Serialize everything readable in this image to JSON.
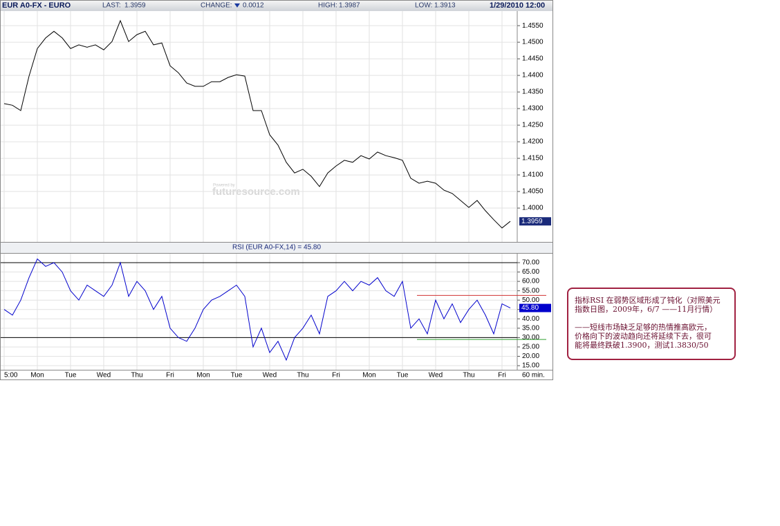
{
  "header": {
    "symbol": "EUR A0-FX - EURO",
    "last_label": "LAST:",
    "last": "1.3959",
    "change_label": "CHANGE:",
    "change": "0.0012",
    "high_label": "HIGH:",
    "high": "1.3987",
    "low_label": "LOW:",
    "low": "1.3913",
    "datetime": "1/29/2010 12:00"
  },
  "watermark": {
    "top": "Powered by",
    "main": "futuresource.com"
  },
  "chart_data": [
    {
      "type": "line",
      "color": "#000000",
      "values": [
        1.4315,
        1.431,
        1.4294,
        1.4398,
        1.4481,
        1.4513,
        1.4533,
        1.4513,
        1.4481,
        1.4492,
        1.4485,
        1.4492,
        1.4477,
        1.4502,
        1.4565,
        1.4502,
        1.4523,
        1.4533,
        1.4492,
        1.4498,
        1.4429,
        1.4408,
        1.4377,
        1.4367,
        1.4367,
        1.4381,
        1.4381,
        1.4394,
        1.4402,
        1.4398,
        1.4294,
        1.4294,
        1.4221,
        1.419,
        1.4138,
        1.4106,
        1.4117,
        1.4096,
        1.4065,
        1.4106,
        1.4127,
        1.4144,
        1.4138,
        1.4158,
        1.4148,
        1.4169,
        1.4158,
        1.4152,
        1.4144,
        1.409,
        1.4075,
        1.4081,
        1.4075,
        1.4054,
        1.4044,
        1.4023,
        1.4002,
        1.4023,
        1.3992,
        1.3965,
        1.394,
        1.396
      ],
      "ylim": [
        1.3898,
        1.4594
      ],
      "yticks": [
        {
          "value": 1.4,
          "label": "1.4000"
        },
        {
          "value": 1.405,
          "label": "1.4050"
        },
        {
          "value": 1.41,
          "label": "1.4100"
        },
        {
          "value": 1.415,
          "label": "1.4150"
        },
        {
          "value": 1.42,
          "label": "1.4200"
        },
        {
          "value": 1.425,
          "label": "1.4250"
        },
        {
          "value": 1.43,
          "label": "1.4300"
        },
        {
          "value": 1.435,
          "label": "1.4350"
        },
        {
          "value": 1.44,
          "label": "1.4400"
        },
        {
          "value": 1.445,
          "label": "1.4450"
        },
        {
          "value": 1.45,
          "label": "1.4500"
        },
        {
          "value": 1.455,
          "label": "1.4550"
        }
      ],
      "grid": true
    },
    {
      "type": "line",
      "title": "RSI (EUR A0-FX,14) = 45.80",
      "color": "#0000cc",
      "categories": [
        "5:00",
        null,
        null,
        null,
        "Mon",
        null,
        null,
        null,
        "Tue",
        null,
        null,
        null,
        "Wed",
        null,
        null,
        null,
        "Thu",
        null,
        null,
        null,
        "Fri",
        null,
        null,
        null,
        "Mon",
        null,
        null,
        null,
        "Tue",
        null,
        null,
        null,
        "Wed",
        null,
        null,
        null,
        "Thu",
        null,
        null,
        null,
        "Fri",
        null,
        null,
        null,
        "Mon",
        null,
        null,
        null,
        "Tue",
        null,
        null,
        null,
        "Wed",
        null,
        null,
        null,
        "Thu",
        null,
        null,
        null,
        "Fri",
        null
      ],
      "values": [
        45,
        42,
        50,
        62,
        72,
        68,
        70,
        65,
        55,
        50,
        58,
        55,
        52,
        58,
        70,
        52,
        60,
        55,
        45,
        52,
        35,
        30,
        28,
        35,
        45,
        50,
        52,
        55,
        58,
        52,
        25,
        35,
        22,
        28,
        18,
        30,
        35,
        42,
        32,
        52,
        55,
        60,
        55,
        60,
        58,
        62,
        55,
        52,
        60,
        35,
        40,
        32,
        50,
        40,
        48,
        38,
        45,
        50,
        42,
        32,
        48,
        45.8
      ],
      "value_labels": [
        null,
        null,
        null,
        null,
        null,
        null,
        null,
        null,
        null,
        null,
        null,
        null,
        null,
        null,
        null,
        null,
        null,
        null,
        null,
        null,
        null,
        null,
        null,
        null,
        null,
        null,
        null,
        null,
        null,
        null,
        null,
        null,
        null,
        null,
        null,
        null,
        null,
        null,
        null,
        null,
        null,
        null,
        null,
        null,
        null,
        null,
        null,
        null,
        null,
        null,
        null,
        null,
        null,
        null,
        null,
        null,
        null,
        null,
        null,
        null,
        null,
        "45.80"
      ],
      "x_unit": "60 min.",
      "ylim": [
        12.8,
        74.8
      ],
      "yticks": [
        {
          "value": 15,
          "label": "15.00"
        },
        {
          "value": 20,
          "label": "20.00"
        },
        {
          "value": 25,
          "label": "25.00"
        },
        {
          "value": 30,
          "label": "30.00"
        },
        {
          "value": 35,
          "label": "35.00"
        },
        {
          "value": 40,
          "label": "40.00"
        },
        {
          "value": 45,
          "label": "45.00"
        },
        {
          "value": 50,
          "label": "50.00"
        },
        {
          "value": 55,
          "label": "55.00"
        },
        {
          "value": 60,
          "label": "60.00"
        },
        {
          "value": 65,
          "label": "65.00"
        },
        {
          "value": 70,
          "label": "70.00"
        }
      ],
      "reference_lines": [
        70,
        30
      ],
      "trend_lines": [
        {
          "value": 52.5,
          "color": "#d03030"
        },
        {
          "value": 29,
          "color": "#30a030"
        }
      ],
      "grid": true
    }
  ],
  "annotation": {
    "paragraphs": [
      [
        "指标RSI 在弱势区域形成了钝化（对照美元",
        "指数日图，2009年，6/7 ——11月行情）"
      ],
      [
        "——短线市场缺乏足够的热情推高欧元，",
        "价格向下的波动趋向还将延续下去，很可",
        "能将最终跌破1.3900，测试1.3830/50"
      ]
    ]
  }
}
